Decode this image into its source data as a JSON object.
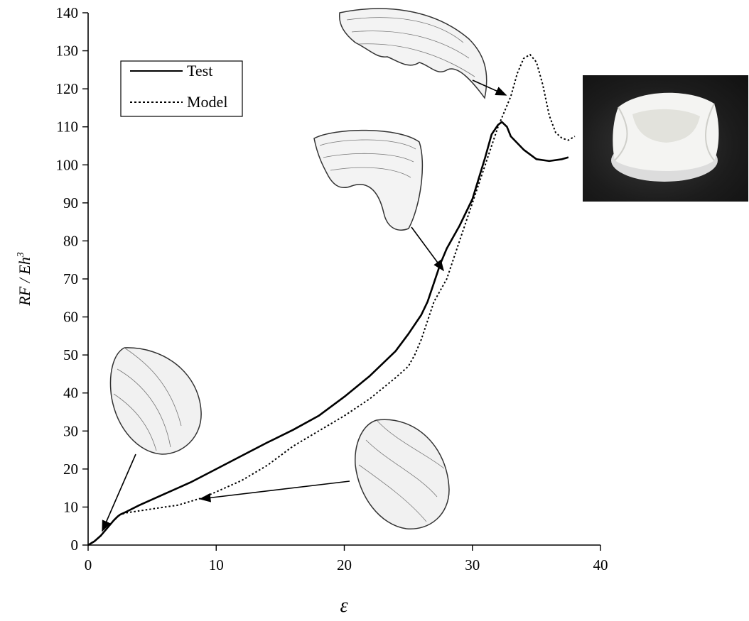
{
  "chart_data": {
    "type": "line",
    "xlabel": "ε",
    "ylabel_parts": {
      "base": "RF / Eh",
      "sup": "3"
    },
    "xlim": [
      0,
      40
    ],
    "ylim": [
      0,
      140
    ],
    "xticks": [
      0,
      10,
      20,
      30,
      40
    ],
    "yticks": [
      0,
      10,
      20,
      30,
      40,
      50,
      60,
      70,
      80,
      90,
      100,
      110,
      120,
      130,
      140
    ],
    "grid": false,
    "legend_placement": "top-left",
    "series": [
      {
        "name": "Test",
        "style": "solid",
        "color": "#000000",
        "x": [
          0,
          0.5,
          1.0,
          1.5,
          2.0,
          2.3,
          2.5,
          3,
          4,
          6,
          8,
          10,
          12,
          14,
          16,
          18,
          20,
          22,
          24,
          25,
          26,
          26.5,
          27,
          27.5,
          28,
          29,
          30,
          31,
          31.5,
          32,
          32.3,
          32.7,
          33,
          34,
          35,
          36,
          37,
          37.5
        ],
        "y": [
          0,
          1.0,
          2.5,
          4.5,
          6.5,
          7.5,
          8.0,
          8.8,
          10.5,
          13.5,
          16.5,
          20,
          23.5,
          27,
          30.3,
          34,
          39,
          44.5,
          51,
          55.5,
          60.5,
          64,
          69,
          74,
          78,
          84,
          91,
          102,
          108,
          110.5,
          111.3,
          110,
          107.5,
          104,
          101.5,
          101,
          101.5,
          102
        ]
      },
      {
        "name": "Model",
        "style": "dotted",
        "color": "#000000",
        "x": [
          0,
          0.5,
          1.0,
          1.5,
          2.0,
          2.3,
          2.5,
          3,
          4,
          5,
          6,
          7,
          8,
          9,
          10,
          12,
          14,
          16,
          18,
          20,
          22,
          24,
          25,
          25.5,
          26,
          26.5,
          27,
          27.5,
          28,
          28.5,
          29,
          30,
          31,
          32,
          33,
          33.5,
          34,
          34.5,
          35,
          35.5,
          36,
          36.5,
          37,
          37.5,
          38
        ],
        "y": [
          0,
          1.0,
          2.5,
          4.5,
          6.5,
          7.5,
          8.0,
          8.5,
          9.0,
          9.5,
          10,
          10.5,
          11.5,
          12.5,
          14,
          17,
          21,
          26,
          30,
          34,
          38.5,
          44,
          47,
          50,
          54,
          59,
          64,
          67,
          70,
          75,
          80,
          90,
          100,
          110,
          118,
          124,
          128,
          129,
          127,
          121,
          113,
          108.5,
          107,
          106.5,
          107.5
        ]
      }
    ]
  }
}
